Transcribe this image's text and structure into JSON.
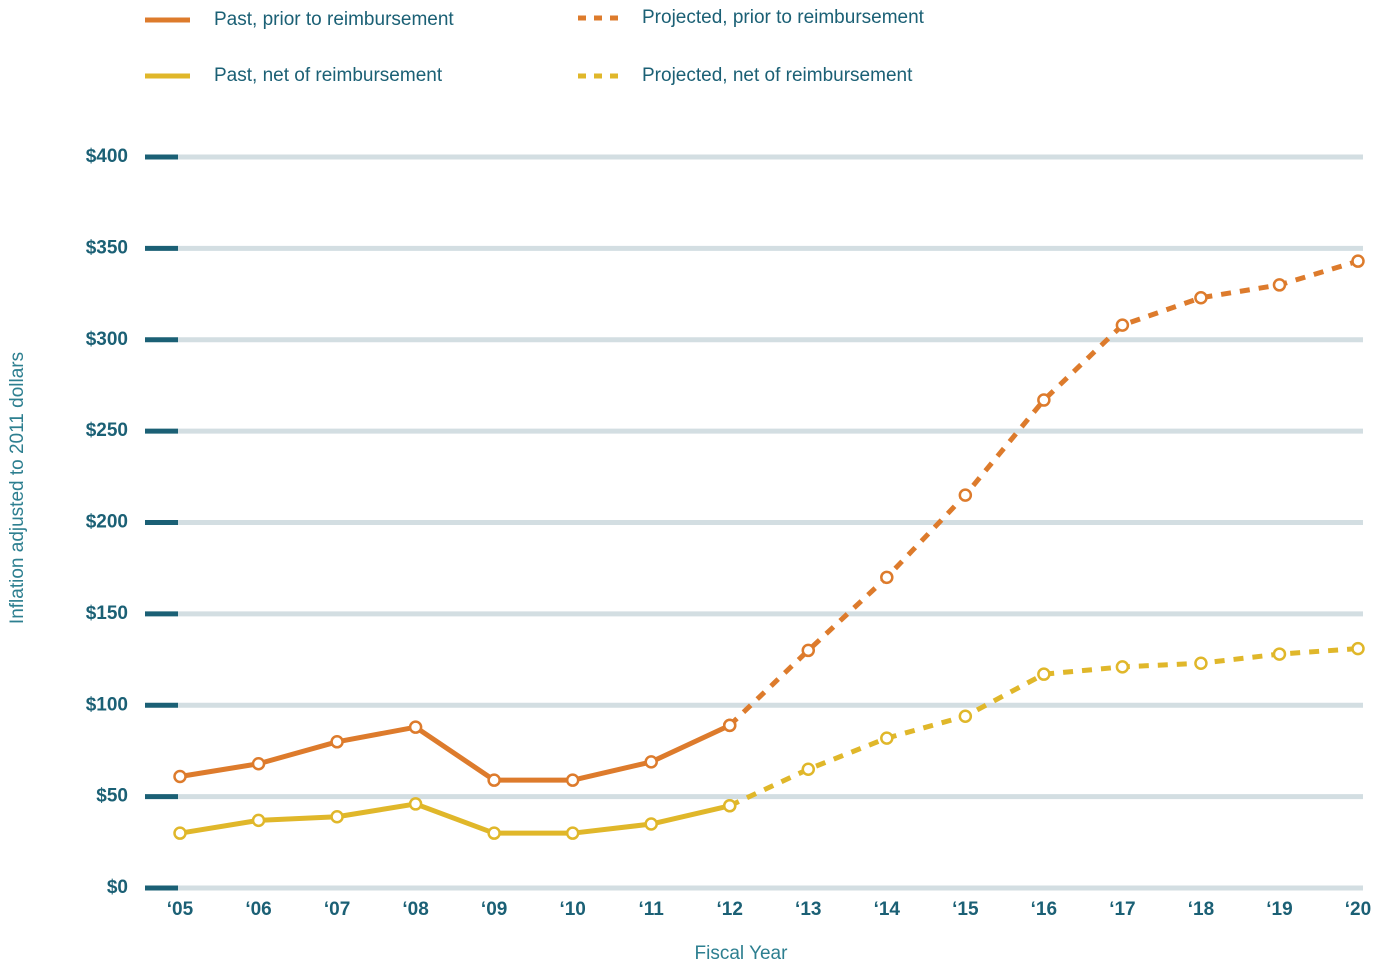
{
  "chart_data": {
    "type": "line",
    "x_label": "Fiscal Year",
    "y_label": "Inflation adjusted to 2011 dollars",
    "categories": [
      "‘05",
      "‘06",
      "‘07",
      "‘08",
      "‘09",
      "‘10",
      "‘11",
      "‘12",
      "‘13",
      "‘14",
      "‘15",
      "‘16",
      "‘17",
      "‘18",
      "‘19",
      "‘20"
    ],
    "ylim": [
      0,
      400
    ],
    "yticks": [
      {
        "value": 0,
        "label": "$0"
      },
      {
        "value": 50,
        "label": "$50"
      },
      {
        "value": 100,
        "label": "$100"
      },
      {
        "value": 150,
        "label": "$150"
      },
      {
        "value": 200,
        "label": "$200"
      },
      {
        "value": 250,
        "label": "$250"
      },
      {
        "value": 300,
        "label": "$300"
      },
      {
        "value": 350,
        "label": "$350"
      },
      {
        "value": 400,
        "label": "$400"
      }
    ],
    "grid": true,
    "series": [
      {
        "name": "Past, prior to reimbursement",
        "color": "#dd7b2c",
        "style": "solid",
        "values": [
          61,
          68,
          80,
          88,
          59,
          59,
          69,
          89,
          null,
          null,
          null,
          null,
          null,
          null,
          null,
          null
        ]
      },
      {
        "name": "Past, net of reimbursement",
        "color": "#e0b72a",
        "style": "solid",
        "values": [
          30,
          37,
          39,
          46,
          30,
          30,
          35,
          45,
          null,
          null,
          null,
          null,
          null,
          null,
          null,
          null
        ]
      },
      {
        "name": "Projected, prior to reimbursement",
        "color": "#dd7b2c",
        "style": "dashed",
        "values": [
          null,
          null,
          null,
          null,
          null,
          null,
          null,
          89,
          130,
          170,
          215,
          267,
          308,
          323,
          330,
          343
        ]
      },
      {
        "name": "Projected, net of reimbursement",
        "color": "#e0b72a",
        "style": "dashed",
        "values": [
          null,
          null,
          null,
          null,
          null,
          null,
          null,
          45,
          65,
          82,
          94,
          117,
          121,
          123,
          128,
          131
        ]
      }
    ]
  }
}
